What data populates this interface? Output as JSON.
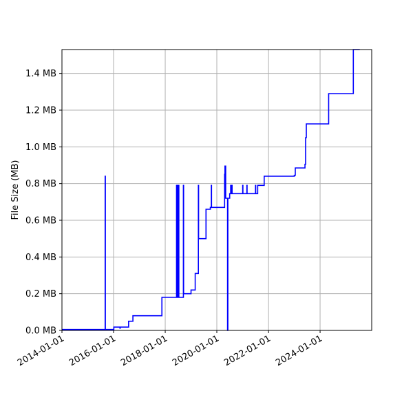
{
  "chart_data": {
    "type": "line",
    "title": "",
    "xlabel": "",
    "ylabel": "File Size (MB)",
    "x_type": "date",
    "xlim": [
      "2014-01-01",
      "2025-12-31"
    ],
    "ylim": [
      0,
      1.53
    ],
    "grid": true,
    "legend": "none",
    "colors": {
      "line": "#0000ff",
      "grid": "#b0b0b0",
      "axes": "#000000"
    },
    "x_ticks": [
      {
        "value": "2014-01-01",
        "label": "2014-01-01"
      },
      {
        "value": "2016-01-01",
        "label": "2016-01-01"
      },
      {
        "value": "2018-01-01",
        "label": "2018-01-01"
      },
      {
        "value": "2020-01-01",
        "label": "2020-01-01"
      },
      {
        "value": "2022-01-01",
        "label": "2022-01-01"
      },
      {
        "value": "2024-01-01",
        "label": "2024-01-01"
      }
    ],
    "y_ticks": [
      {
        "value": 0.0,
        "label": "0.0 MB"
      },
      {
        "value": 0.2,
        "label": "0.2 MB"
      },
      {
        "value": 0.4,
        "label": "0.4 MB"
      },
      {
        "value": 0.6,
        "label": "0.6 MB"
      },
      {
        "value": 0.8,
        "label": "0.8 MB"
      },
      {
        "value": 1.0,
        "label": "1.0 MB"
      },
      {
        "value": 1.2,
        "label": "1.2 MB"
      },
      {
        "value": 1.4,
        "label": "1.4 MB"
      }
    ],
    "series": [
      {
        "step": true,
        "points": [
          [
            "2014-01-01",
            0.005
          ],
          [
            "2015-09-01",
            0.005
          ],
          [
            "2015-09-04",
            0.84
          ],
          [
            "2015-09-07",
            0.005
          ],
          [
            "2016-01-03",
            0.005
          ],
          [
            "2016-01-05",
            0.018
          ],
          [
            "2016-04-01",
            0.012
          ],
          [
            "2016-04-04",
            0.018
          ],
          [
            "2016-08-01",
            0.05
          ],
          [
            "2016-10-01",
            0.08
          ],
          [
            "2017-11-15",
            0.18
          ],
          [
            "2018-06-10",
            0.79
          ],
          [
            "2018-06-13",
            0.18
          ],
          [
            "2018-06-20",
            0.79
          ],
          [
            "2018-06-23",
            0.18
          ],
          [
            "2018-07-01",
            0.79
          ],
          [
            "2018-07-04",
            0.18
          ],
          [
            "2018-07-10",
            0.79
          ],
          [
            "2018-07-13",
            0.18
          ],
          [
            "2018-09-15",
            0.79
          ],
          [
            "2018-09-18",
            0.2
          ],
          [
            "2019-01-01",
            0.22
          ],
          [
            "2019-03-01",
            0.31
          ],
          [
            "2019-04-15",
            0.79
          ],
          [
            "2019-04-18",
            0.5
          ],
          [
            "2019-08-01",
            0.66
          ],
          [
            "2019-10-01",
            0.67
          ],
          [
            "2019-10-15",
            0.79
          ],
          [
            "2019-10-18",
            0.67
          ],
          [
            "2020-04-20",
            0.85
          ],
          [
            "2020-04-25",
            0.895
          ],
          [
            "2020-05-05",
            0.72
          ],
          [
            "2020-06-01",
            0.0
          ],
          [
            "2020-06-05",
            0.72
          ],
          [
            "2020-07-01",
            0.745
          ],
          [
            "2020-07-15",
            0.79
          ],
          [
            "2020-07-20",
            0.745
          ],
          [
            "2020-08-01",
            0.79
          ],
          [
            "2020-08-04",
            0.745
          ],
          [
            "2021-01-01",
            0.79
          ],
          [
            "2021-01-04",
            0.745
          ],
          [
            "2021-03-01",
            0.79
          ],
          [
            "2021-03-04",
            0.745
          ],
          [
            "2021-07-01",
            0.79
          ],
          [
            "2021-07-04",
            0.745
          ],
          [
            "2021-08-01",
            0.79
          ],
          [
            "2021-11-01",
            0.84
          ],
          [
            "2023-01-01",
            0.845
          ],
          [
            "2023-01-15",
            0.885
          ],
          [
            "2023-06-01",
            0.905
          ],
          [
            "2023-06-10",
            1.05
          ],
          [
            "2023-06-20",
            1.125
          ],
          [
            "2024-05-01",
            1.29
          ],
          [
            "2025-04-15",
            1.53
          ],
          [
            "2025-07-15",
            1.53
          ]
        ]
      }
    ]
  }
}
